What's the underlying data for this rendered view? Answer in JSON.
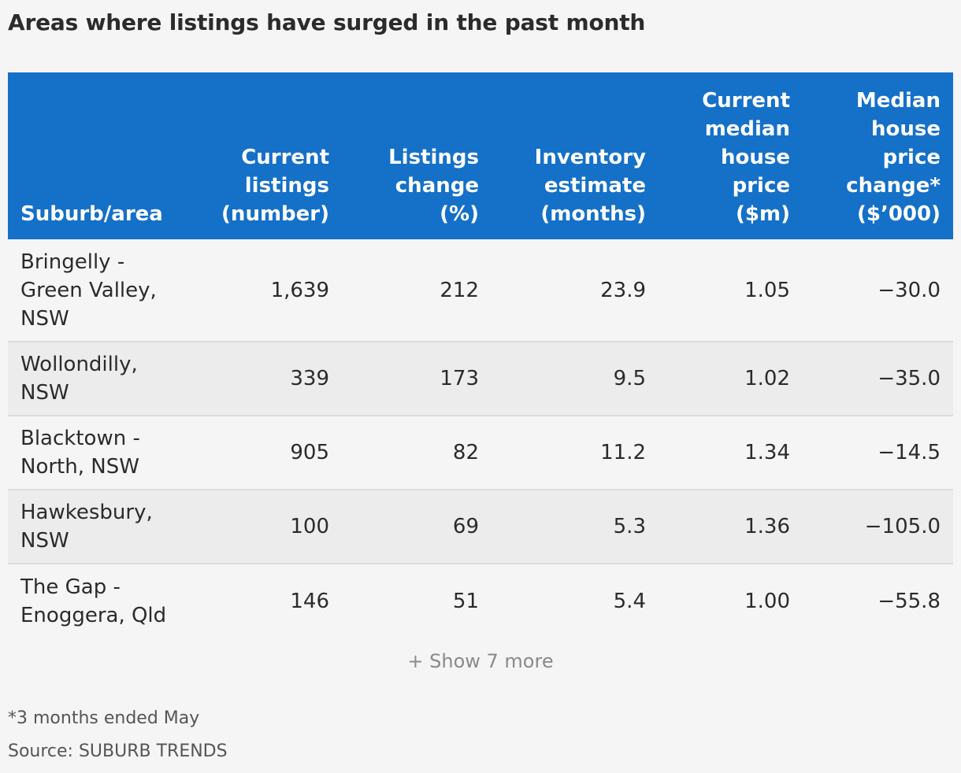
{
  "title": "Areas where listings have surged in the past month",
  "colors": {
    "header_bg": "#1570c8",
    "header_text": "#ffffff",
    "row_alt_bg": "#ececec",
    "page_bg": "#f5f5f5"
  },
  "chart_data": {
    "type": "table",
    "title": "Areas where listings have surged in the past month",
    "columns": [
      [
        "Suburb/area"
      ],
      [
        "Current",
        "listings",
        "(number)"
      ],
      [
        "Listings",
        "change",
        "(%)"
      ],
      [
        "Inventory",
        "estimate",
        "(months)"
      ],
      [
        "Current",
        "median",
        "house",
        "price",
        "($m)"
      ],
      [
        "Median",
        "house",
        "price",
        "change*",
        "($’000)"
      ]
    ],
    "rows": [
      {
        "area": [
          "Bringelly -",
          "Green Valley,",
          "NSW"
        ],
        "listings": "1,639",
        "change": "212",
        "inventory": "23.9",
        "price": "1.05",
        "price_change": "−30.0"
      },
      {
        "area": [
          "Wollondilly,",
          "NSW"
        ],
        "listings": "339",
        "change": "173",
        "inventory": "9.5",
        "price": "1.02",
        "price_change": "−35.0"
      },
      {
        "area": [
          "Blacktown -",
          "North, NSW"
        ],
        "listings": "905",
        "change": "82",
        "inventory": "11.2",
        "price": "1.34",
        "price_change": "−14.5"
      },
      {
        "area": [
          "Hawkesbury,",
          "NSW"
        ],
        "listings": "100",
        "change": "69",
        "inventory": "5.3",
        "price": "1.36",
        "price_change": "−105.0"
      },
      {
        "area": [
          "The Gap -",
          "Enoggera, Qld"
        ],
        "listings": "146",
        "change": "51",
        "inventory": "5.4",
        "price": "1.00",
        "price_change": "−55.8"
      }
    ]
  },
  "show_more_label": "+ Show 7 more",
  "footnote": "*3 months ended May",
  "source": "Source: SUBURB TRENDS"
}
